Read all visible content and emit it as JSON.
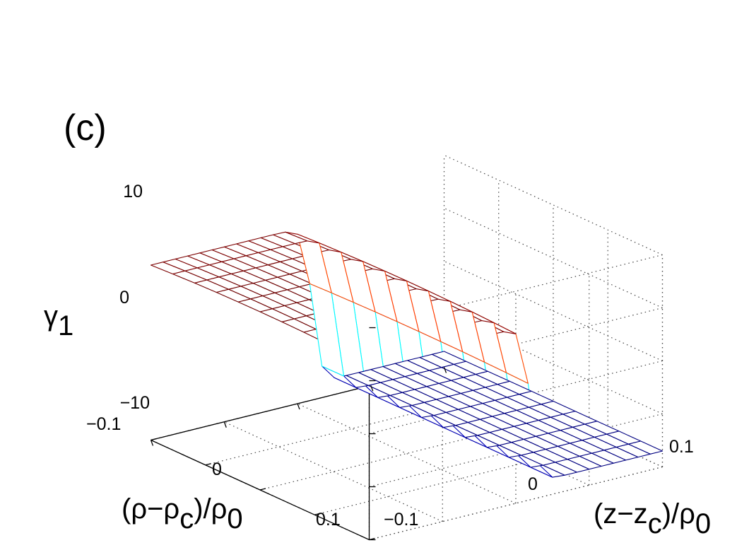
{
  "panel_label": "(c)",
  "chart_data": {
    "type": "surface-3d",
    "panel": "(c)",
    "zlabel": {
      "main": "γ",
      "sub": "1"
    },
    "xlabel": {
      "parts": [
        "(z−z",
        "c",
        ")/ρ",
        "0"
      ]
    },
    "ylabel": {
      "parts": [
        "(ρ−ρ",
        "c",
        ")/ρ",
        "0"
      ]
    },
    "xlim": [
      -0.1,
      0.1
    ],
    "ylim": [
      -0.1,
      0.1
    ],
    "zlim": [
      -10,
      10
    ],
    "x_ticks": [
      {
        "value": -0.1,
        "label": "−0.1"
      },
      {
        "value": 0,
        "label": "0"
      },
      {
        "value": 0.1,
        "label": "0.1"
      }
    ],
    "y_ticks": [
      {
        "value": -0.1,
        "label": "−0.1"
      },
      {
        "value": 0,
        "label": "0"
      },
      {
        "value": 0.1,
        "label": "0.1"
      }
    ],
    "z_ticks": [
      {
        "value": 10,
        "label": "10"
      },
      {
        "value": 0,
        "label": "0"
      },
      {
        "value": -10,
        "label": "−10"
      }
    ],
    "grid": true,
    "colormap": "jet",
    "surface": {
      "description_of_shape": "step in z: high plateau for negative z, low plateau for positive z, smooth transition near z = 0",
      "z_high": 6.5,
      "z_low": -8.5,
      "transition_center": 0.01,
      "transition_width": 0.01,
      "n_x": 25,
      "n_y": 11
    }
  }
}
